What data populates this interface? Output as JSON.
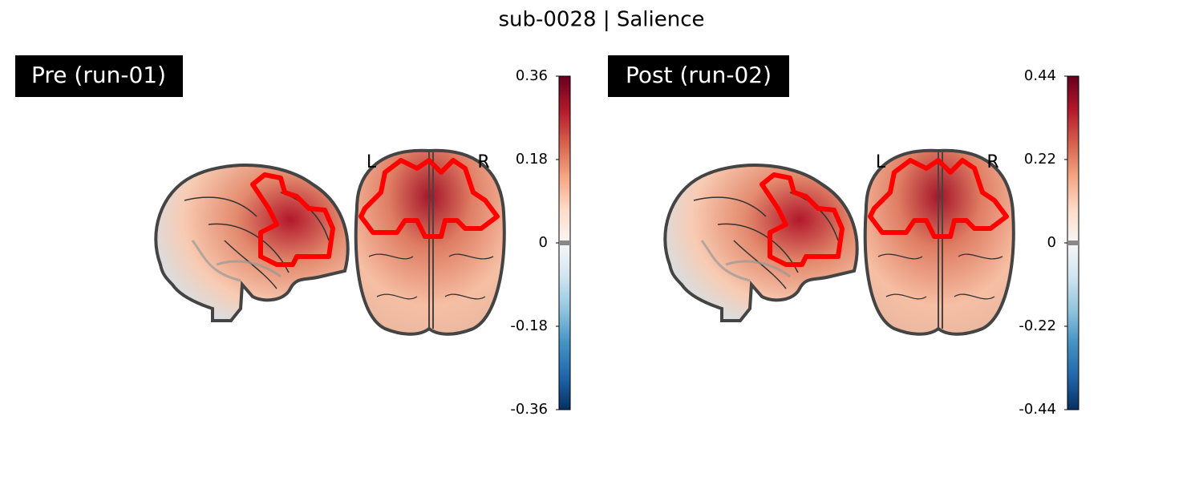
{
  "title": "sub-0028 | Salience",
  "panels": [
    {
      "label": "Pre (run-01)",
      "left": "L",
      "right": "R",
      "colorbar": {
        "lim": [
          -0.36,
          0.36
        ],
        "ticks": [
          0.36,
          0.18,
          0,
          -0.18,
          -0.36
        ]
      }
    },
    {
      "label": "Post (run-02)",
      "left": "L",
      "right": "R",
      "colorbar": {
        "lim": [
          -0.44,
          0.44
        ],
        "ticks": [
          0.44,
          0.22,
          0,
          -0.22,
          -0.44
        ]
      }
    }
  ]
}
